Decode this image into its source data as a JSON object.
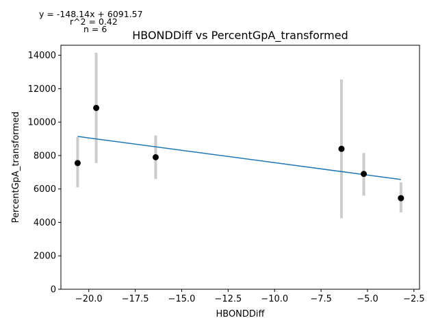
{
  "chart_data": {
    "type": "scatter",
    "title": "HBONDDiff vs PercentGpA_transformed",
    "xlabel": "HBONDDiff",
    "ylabel": "PercentGpA_transformed",
    "xlim": [
      -21.5,
      -2.2
    ],
    "ylim": [
      0,
      14600
    ],
    "xticks": [
      -20.0,
      -17.5,
      -15.0,
      -12.5,
      -10.0,
      -7.5,
      -5.0,
      -2.5
    ],
    "xtick_labels": [
      "−20.0",
      "−17.5",
      "−15.0",
      "−12.5",
      "−10.0",
      "−7.5",
      "−5.0",
      "−2.5"
    ],
    "yticks": [
      0,
      2000,
      4000,
      6000,
      8000,
      10000,
      12000,
      14000
    ],
    "ytick_labels": [
      "0",
      "2000",
      "4000",
      "6000",
      "8000",
      "10000",
      "12000",
      "14000"
    ],
    "grid": false,
    "points": [
      {
        "x": -20.6,
        "y": 7550,
        "err_low": 6100,
        "err_high": 9100
      },
      {
        "x": -19.6,
        "y": 10850,
        "err_low": 7550,
        "err_high": 14150
      },
      {
        "x": -16.4,
        "y": 7900,
        "err_low": 6600,
        "err_high": 9200
      },
      {
        "x": -6.4,
        "y": 8400,
        "err_low": 4250,
        "err_high": 12550
      },
      {
        "x": -5.2,
        "y": 6900,
        "err_low": 5600,
        "err_high": 8150
      },
      {
        "x": -3.2,
        "y": 5450,
        "err_low": 4600,
        "err_high": 6400
      }
    ],
    "regression": {
      "slope": -148.14,
      "intercept": 6091.57,
      "x_start": -20.6,
      "x_end": -3.2
    },
    "annotations": {
      "equation": "y = -148.14x + 6091.57",
      "r2": "r^2 = 0.42",
      "n": "n = 6"
    },
    "colors": {
      "points": "#000000",
      "errorbars": "#cccccc",
      "fit": "#1f77b4"
    }
  }
}
